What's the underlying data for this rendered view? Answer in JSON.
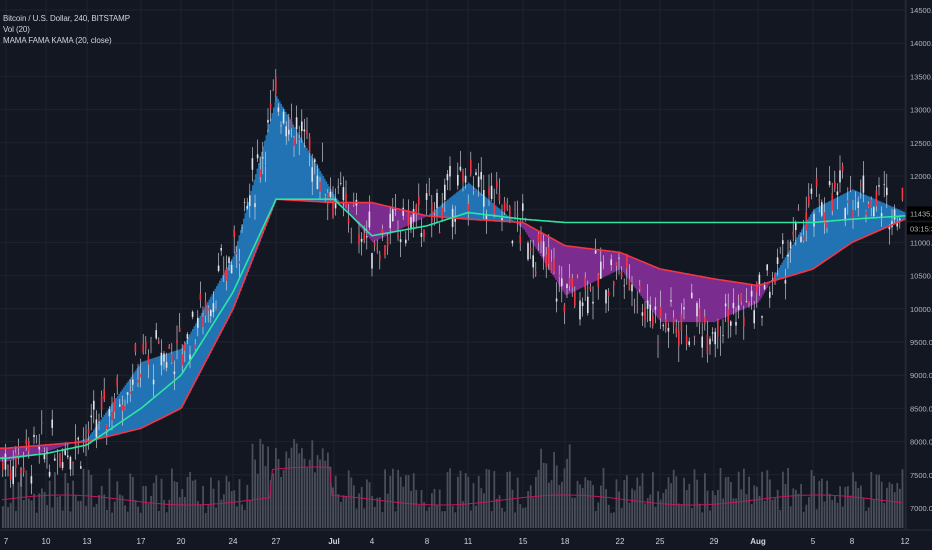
{
  "legend": {
    "symbol_line": "Bitcoin / U.S. Dollar, 240, BITSTAMP",
    "vol_line": "Vol (20)",
    "indicator_line": "MAMA FAMA KAMA (20, close)"
  },
  "price_axis": {
    "ticks": [
      "14500.00",
      "14000.00",
      "13500.00",
      "13000.00",
      "12500.00",
      "12000.00",
      "11500.00",
      "11000.00",
      "10500.00",
      "10000.00",
      "9500.00",
      "9000.00",
      "8500.00",
      "8000.00",
      "7500.00",
      "7000.00"
    ],
    "last_price": "11435.57",
    "countdown": "03:15:36"
  },
  "time_axis": {
    "ticks": [
      {
        "label": "7",
        "bold": false
      },
      {
        "label": "10",
        "bold": false
      },
      {
        "label": "13",
        "bold": false
      },
      {
        "label": "17",
        "bold": false
      },
      {
        "label": "20",
        "bold": false
      },
      {
        "label": "24",
        "bold": false
      },
      {
        "label": "27",
        "bold": false
      },
      {
        "label": "Jul",
        "bold": true
      },
      {
        "label": "4",
        "bold": false
      },
      {
        "label": "8",
        "bold": false
      },
      {
        "label": "11",
        "bold": false
      },
      {
        "label": "15",
        "bold": false
      },
      {
        "label": "18",
        "bold": false
      },
      {
        "label": "22",
        "bold": false
      },
      {
        "label": "25",
        "bold": false
      },
      {
        "label": "29",
        "bold": false
      },
      {
        "label": "Aug",
        "bold": true
      },
      {
        "label": "5",
        "bold": false
      },
      {
        "label": "8",
        "bold": false
      },
      {
        "label": "12",
        "bold": false
      }
    ]
  },
  "colors": {
    "background": "#131722",
    "grid": "#1e2330",
    "mama_band_up": "#2173b3",
    "mama_band_down": "#7b2c8f",
    "fama_line": "#f23645",
    "kama_line": "#2ee6a0",
    "volume_bar": "#4a4e5a",
    "volume_ma": "#c2185b",
    "candle": "#e0e3eb",
    "price_label": "#ffffff"
  },
  "chart_data": {
    "type": "line",
    "ylim": [
      7000,
      14500
    ],
    "series": [
      {
        "name": "MAMA",
        "x": [
          "Jun 7",
          "Jun 10",
          "Jun 13",
          "Jun 17",
          "Jun 20",
          "Jun 24",
          "Jun 27",
          "Jul 1",
          "Jul 4",
          "Jul 8",
          "Jul 11",
          "Jul 15",
          "Jul 18",
          "Jul 22",
          "Jul 25",
          "Jul 29",
          "Aug 1",
          "Aug 5",
          "Aug 8",
          "Aug 12"
        ],
        "values": [
          7700,
          7850,
          8050,
          9200,
          9400,
          10800,
          13200,
          11700,
          11000,
          11400,
          11900,
          11200,
          10200,
          10600,
          9800,
          9800,
          10100,
          11500,
          11800,
          11450
        ]
      },
      {
        "name": "FAMA",
        "x": [
          "Jun 7",
          "Jun 10",
          "Jun 13",
          "Jun 17",
          "Jun 20",
          "Jun 24",
          "Jun 27",
          "Jul 1",
          "Jul 4",
          "Jul 8",
          "Jul 11",
          "Jul 15",
          "Jul 18",
          "Jul 22",
          "Jul 25",
          "Jul 29",
          "Aug 1",
          "Aug 5",
          "Aug 8",
          "Aug 12"
        ],
        "values": [
          7900,
          7950,
          8000,
          8200,
          8500,
          10000,
          11650,
          11600,
          11600,
          11400,
          11350,
          11300,
          10950,
          10850,
          10600,
          10450,
          10350,
          10600,
          11000,
          11350
        ]
      },
      {
        "name": "KAMA",
        "x": [
          "Jun 7",
          "Jun 10",
          "Jun 13",
          "Jun 17",
          "Jun 20",
          "Jun 24",
          "Jun 27",
          "Jul 1",
          "Jul 4",
          "Jul 8",
          "Jul 11",
          "Jul 15",
          "Jul 18",
          "Jul 22",
          "Jul 25",
          "Jul 29",
          "Aug 1",
          "Aug 5",
          "Aug 8",
          "Aug 12"
        ],
        "values": [
          7750,
          7820,
          7950,
          8500,
          9000,
          10250,
          11650,
          11650,
          11100,
          11250,
          11450,
          11350,
          11300,
          11300,
          11300,
          11300,
          11300,
          11300,
          11350,
          11400
        ]
      }
    ]
  }
}
